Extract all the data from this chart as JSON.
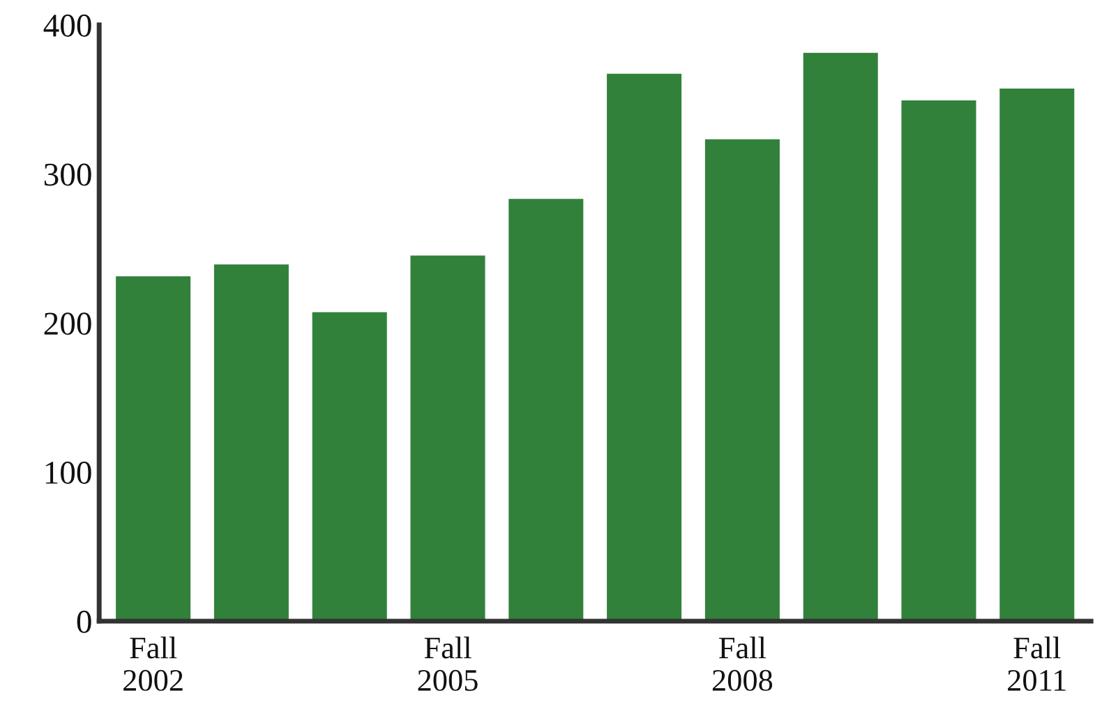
{
  "chart_data": {
    "type": "bar",
    "categories": [
      "Fall\n2002",
      null,
      null,
      "Fall\n2005",
      null,
      null,
      "Fall\n2008",
      null,
      null,
      "Fall\n2011"
    ],
    "values": [
      232,
      240,
      208,
      246,
      284,
      368,
      324,
      382,
      350,
      358
    ],
    "color": "#31813b",
    "ylim": [
      0,
      400
    ],
    "yticks": [
      0,
      100,
      200,
      300,
      400
    ],
    "grid": false
  }
}
